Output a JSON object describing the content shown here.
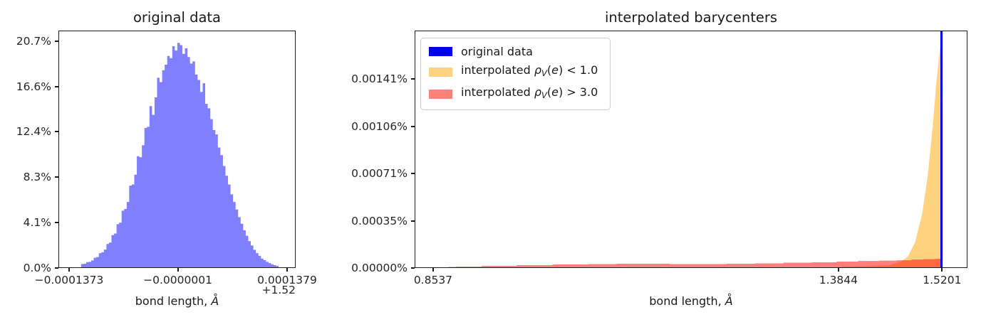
{
  "colors": {
    "hist_blue_fill": "rgba(0,0,255,0.5)",
    "orig_blue": "#0000ee",
    "orange_fill": "rgba(255,165,0,0.5)",
    "red_fill": "rgba(255,0,0,0.5)",
    "legend_orange_swatch": "#ffd282",
    "legend_red_swatch": "#fb827a",
    "axis_color": "#1a1a1a"
  },
  "chart_data": [
    {
      "type": "bar",
      "title": "original data",
      "xlabel_parts": [
        {
          "t": "bond length, ",
          "s": "plain"
        },
        {
          "t": "A",
          "s": "mi"
        },
        {
          "t": "°",
          "s": "ring"
        }
      ],
      "offset_text": "+1.52",
      "x_ticks": [
        {
          "label": "−0.0001373",
          "v": -0.0001373
        },
        {
          "label": "−0.0000001",
          "v": -1e-07
        },
        {
          "label": "0.0001379",
          "v": 0.0001379
        }
      ],
      "y_ticks": [
        {
          "label": "0.0%",
          "v": 0
        },
        {
          "label": "4.1%",
          "v": 4.142
        },
        {
          "label": "8.3%",
          "v": 8.284
        },
        {
          "label": "12.4%",
          "v": 12.426
        },
        {
          "label": "16.6%",
          "v": 16.568
        },
        {
          "label": "20.7%",
          "v": 20.71
        }
      ],
      "xlim": [
        -0.0001508,
        0.0001487
      ],
      "ylim": [
        0,
        21.67
      ],
      "color_key": "hist_blue_fill",
      "bins_start": -0.0001229,
      "bin_width": 3.2166e-06,
      "values_pct": [
        0.3,
        0.33,
        0.47,
        0.5,
        0.63,
        0.88,
        0.95,
        1.3,
        1.38,
        1.62,
        2.14,
        2.27,
        2.95,
        3.1,
        3.96,
        4.1,
        5.2,
        5.35,
        6.0,
        7.5,
        7.6,
        8.5,
        10.2,
        10.1,
        11.2,
        12.8,
        12.9,
        14.8,
        14.0,
        15.6,
        17.4,
        17.0,
        18.1,
        18.6,
        19.4,
        19.2,
        20.3,
        19.9,
        20.6,
        20.4,
        19.6,
        20.1,
        19.3,
        18.7,
        18.9,
        17.7,
        17.2,
        16.1,
        16.9,
        15.0,
        14.6,
        13.6,
        12.6,
        12.2,
        11.0,
        10.3,
        9.3,
        8.4,
        7.6,
        6.7,
        6.0,
        5.3,
        4.6,
        4.0,
        3.4,
        2.9,
        2.4,
        2.0,
        1.6,
        1.3,
        1.05,
        0.8,
        0.65,
        0.5,
        0.38,
        0.28,
        0.2,
        0.12
      ]
    },
    {
      "type": "overlay",
      "title": "interpolated barycenters",
      "xlabel_parts": [
        {
          "t": "bond length, ",
          "s": "plain"
        },
        {
          "t": "A",
          "s": "mi"
        },
        {
          "t": "°",
          "s": "ring"
        }
      ],
      "x_ticks": [
        {
          "label": "0.8537",
          "v": 0.8537
        },
        {
          "label": "1.3844",
          "v": 1.3844
        },
        {
          "label": "1.5201",
          "v": 1.5201
        }
      ],
      "y_ticks": [
        {
          "label": "0.00000%",
          "v": 0
        },
        {
          "label": "0.00035%",
          "v": 0.000353
        },
        {
          "label": "0.00071%",
          "v": 0.000706
        },
        {
          "label": "0.00106%",
          "v": 0.001059
        },
        {
          "label": "0.00141%",
          "v": 0.001412
        }
      ],
      "xlim": [
        0.8295,
        1.5533
      ],
      "ylim": [
        0,
        0.001775
      ],
      "series": [
        {
          "name": "interpolated rho_V(e) < 1.0",
          "kind": "fill",
          "step": false,
          "color_key": "orange_fill",
          "points": [
            [
              1.39,
              5.3e-06
            ],
            [
              1.434,
              1.06e-05
            ],
            [
              1.4527,
              1.59e-05
            ],
            [
              1.4667,
              4.25e-05
            ],
            [
              1.476,
              7.96e-05
            ],
            [
              1.4853,
              0.000186
            ],
            [
              1.4947,
              0.000398
            ],
            [
              1.5021,
              0.00069
            ],
            [
              1.5087,
              0.001062
            ],
            [
              1.5133,
              0.00138
            ],
            [
              1.5171,
              0.001593
            ],
            [
              1.5201,
              0.00171
            ]
          ]
        },
        {
          "name": "interpolated rho_V(e) > 3.0",
          "kind": "fill",
          "step": true,
          "color_key": "red_fill",
          "points": [
            [
              0.8724,
              2.7e-06
            ],
            [
              0.8929,
              5.3e-06
            ],
            [
              0.9395,
              1.06e-05
            ],
            [
              0.9862,
              1.59e-05
            ],
            [
              1.0328,
              2.12e-05
            ],
            [
              1.0795,
              2.39e-05
            ],
            [
              1.1075,
              2.66e-05
            ],
            [
              1.1448,
              2.66e-05
            ],
            [
              1.1821,
              2.39e-05
            ],
            [
              1.2194,
              2.39e-05
            ],
            [
              1.2567,
              2.66e-05
            ],
            [
              1.294,
              2.92e-05
            ],
            [
              1.3313,
              3.45e-05
            ],
            [
              1.3686,
              3.72e-05
            ],
            [
              1.3966,
              4.25e-05
            ],
            [
              1.4246,
              4.78e-05
            ],
            [
              1.4526,
              5.04e-05
            ],
            [
              1.4713,
              5.31e-05
            ],
            [
              1.4899,
              5.84e-05
            ],
            [
              1.5039,
              6.11e-05
            ],
            [
              1.5201,
              6.37e-05
            ]
          ]
        },
        {
          "name": "original data",
          "kind": "vline",
          "color_key": "orig_blue",
          "x": 1.5201
        }
      ],
      "legend": {
        "items": [
          {
            "color_key": "orig_blue",
            "parts": [
              {
                "t": "original data",
                "s": "plain"
              }
            ]
          },
          {
            "color_key": "legend_orange_swatch",
            "parts": [
              {
                "t": "interpolated ",
                "s": "plain"
              },
              {
                "t": "ρ",
                "s": "mi"
              },
              {
                "t": "V",
                "s": "msub"
              },
              {
                "t": "(",
                "s": "plain"
              },
              {
                "t": "e",
                "s": "mi"
              },
              {
                "t": ") < 1.0",
                "s": "plain"
              }
            ]
          },
          {
            "color_key": "legend_red_swatch",
            "parts": [
              {
                "t": "interpolated ",
                "s": "plain"
              },
              {
                "t": "ρ",
                "s": "mi"
              },
              {
                "t": "V",
                "s": "msub"
              },
              {
                "t": "(",
                "s": "plain"
              },
              {
                "t": "e",
                "s": "mi"
              },
              {
                "t": ") > 3.0",
                "s": "plain"
              }
            ]
          }
        ]
      }
    }
  ]
}
